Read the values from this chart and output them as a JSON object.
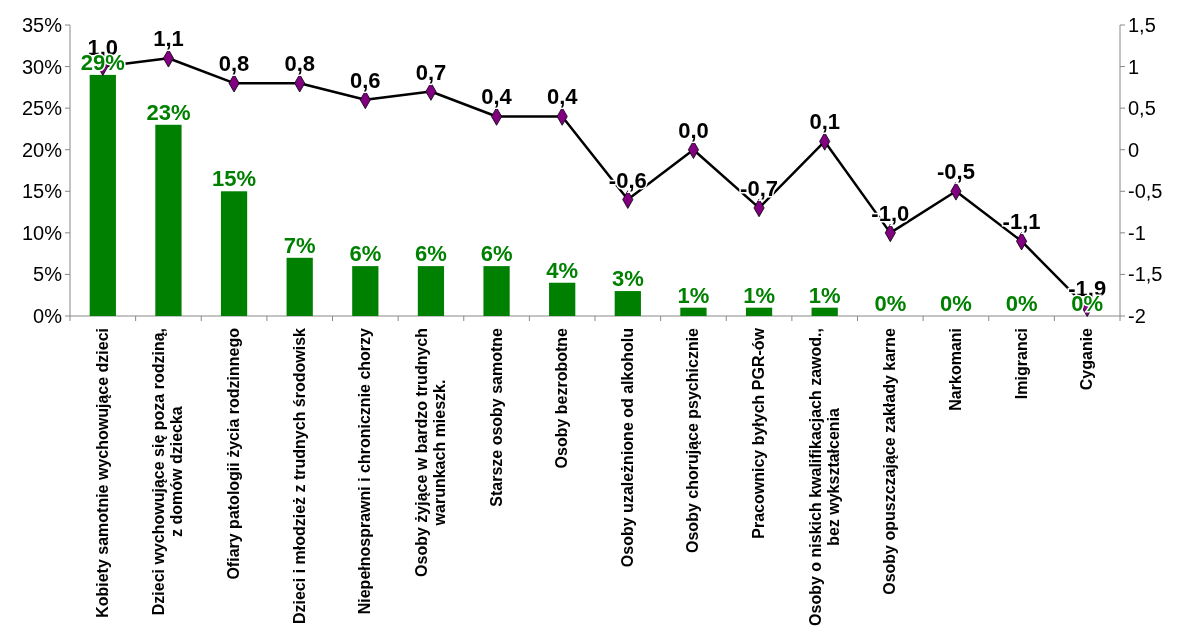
{
  "chart_data": {
    "type": "bar",
    "categories": [
      "Kobiety samotnie wychowujące dzieci",
      "Dzieci wychowujące się poza rodziną, z domów dziecka",
      "Ofiary patologii życia rodzinnego",
      "Dzieci i młodzież z trudnych środowisk",
      "Niepełnosprawni i chronicznie chorzy",
      "Osoby żyjące w bardzo trudnych warunkach mieszk.",
      "Starsze osoby samotne",
      "Osoby bezrobotne",
      "Osoby uzależnione od alkoholu",
      "Osoby chorujące psychicznie",
      "Pracownicy byłych PGR-ów",
      "Osoby o niskich kwalifikacjach zawod., bez wykształcenia",
      "Osoby opuszczające zakłady karne",
      "Narkomani",
      "Imigranci",
      "Cyganie"
    ],
    "series": [
      {
        "color": "#008000",
        "values": [
          29,
          23,
          15,
          7,
          6,
          6,
          6,
          4,
          3,
          1,
          1,
          1,
          0,
          0,
          0,
          0
        ],
        "value_labels": [
          "29%",
          "23%",
          "15%",
          "7%",
          "6%",
          "6%",
          "6%",
          "4%",
          "3%",
          "1%",
          "1%",
          "1%",
          "0%",
          "0%",
          "0%",
          "0%"
        ]
      },
      {
        "type": "line",
        "axis": "y2",
        "color": "#000000",
        "marker": "diamond",
        "line_style": "solid",
        "values": [
          1.0,
          1.1,
          0.8,
          0.8,
          0.6,
          0.7,
          0.4,
          0.4,
          -0.6,
          0.0,
          -0.7,
          0.1,
          -1.0,
          -0.5,
          -1.1,
          -1.9
        ],
        "value_labels": [
          "1,0",
          "1,1",
          "0,8",
          "0,8",
          "0,6",
          "0,7",
          "0,4",
          "0,4",
          "-0,6",
          "0,0",
          "-0,7",
          "0,1",
          "-1,0",
          "-0,5",
          "-1,1",
          "-1,9"
        ]
      }
    ],
    "ylim": [
      0,
      35
    ],
    "yticks": [
      {
        "value": 0,
        "label": "0%"
      },
      {
        "value": 5,
        "label": "5%"
      },
      {
        "value": 10,
        "label": "10%"
      },
      {
        "value": 15,
        "label": "15%"
      },
      {
        "value": 20,
        "label": "20%"
      },
      {
        "value": 25,
        "label": "25%"
      },
      {
        "value": 30,
        "label": "30%"
      },
      {
        "value": 35,
        "label": "35%"
      }
    ],
    "y2lim": [
      -2,
      1.5
    ],
    "y2ticks": [
      -2,
      {
        "value": -1.5,
        "label": "-1,5"
      },
      -1,
      {
        "value": -0.5,
        "label": "-0,5"
      },
      0,
      {
        "value": 0.5,
        "label": "0,5"
      },
      1,
      {
        "value": 1.5,
        "label": "1,5"
      }
    ],
    "grid": false
  }
}
